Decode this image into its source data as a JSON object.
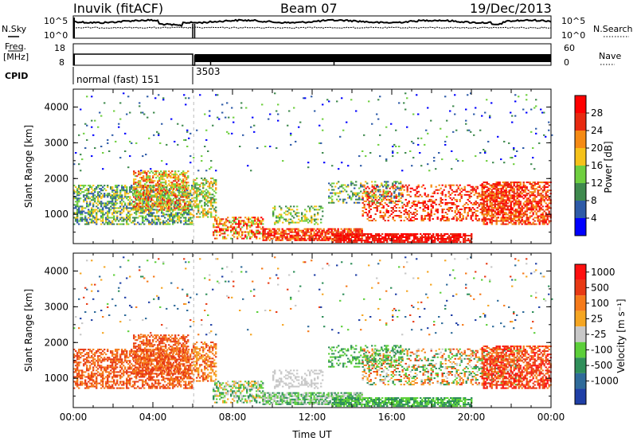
{
  "header": {
    "station": "Inuvik (fitACF)",
    "beam": "Beam 07",
    "date": "19/Dec/2013"
  },
  "top_panels": {
    "nsky_label": "N.Sky",
    "nsky_ticks": [
      "10^5",
      "10^0"
    ],
    "nsearch_label": "N.Search",
    "nsearch_ticks": [
      "10^5",
      "10^0"
    ],
    "freq_label_line1": "Freq.",
    "freq_label_line2": "[MHz]",
    "freq_ticks": [
      "18",
      "8"
    ],
    "nave_label": "Nave",
    "nave_ticks": [
      "60",
      "0"
    ],
    "cpid_label": "CPID",
    "cpid_segments": [
      {
        "label": "normal (fast) 151",
        "start_hour": 0.0
      },
      {
        "label": "3503",
        "start_hour": 6.0
      }
    ]
  },
  "chart_data": [
    {
      "type": "heatmap",
      "name": "Power",
      "ylabel": "Slant Range [km]",
      "xlabel": "",
      "x_range_hours": [
        0,
        24
      ],
      "ylim": [
        180,
        4500
      ],
      "yticks": [
        "1000",
        "2000",
        "3000",
        "4000"
      ],
      "colorbar_label": "Power [dB]",
      "colorbar_ticks": [
        "4",
        "8",
        "12",
        "16",
        "20",
        "24",
        "28"
      ],
      "colors": [
        "#0000ff",
        "#2e5ba8",
        "#3f8a4e",
        "#6fcf3f",
        "#f5c21a",
        "#f58a14",
        "#e82a10",
        "#ff0000"
      ]
    },
    {
      "type": "heatmap",
      "name": "Velocity",
      "ylabel": "Slant Range [km]",
      "xlabel": "Time UT",
      "x_range_hours": [
        0,
        24
      ],
      "xticks": [
        "00:00",
        "04:00",
        "08:00",
        "12:00",
        "16:00",
        "20:00",
        "00:00"
      ],
      "ylim": [
        180,
        4500
      ],
      "yticks": [
        "1000",
        "2000",
        "3000",
        "4000"
      ],
      "colorbar_label": "Velocity [m s⁻¹]",
      "colorbar_ticks": [
        "1000",
        "500",
        "100",
        "25",
        "-25",
        "-100",
        "-500",
        "-1000"
      ],
      "colors": [
        "#1f3fa6",
        "#2f6b9a",
        "#2f8f5a",
        "#5ccf3a",
        "#c8c8c8",
        "#f5a623",
        "#f57a1a",
        "#e83a14",
        "#ff1010"
      ]
    }
  ]
}
